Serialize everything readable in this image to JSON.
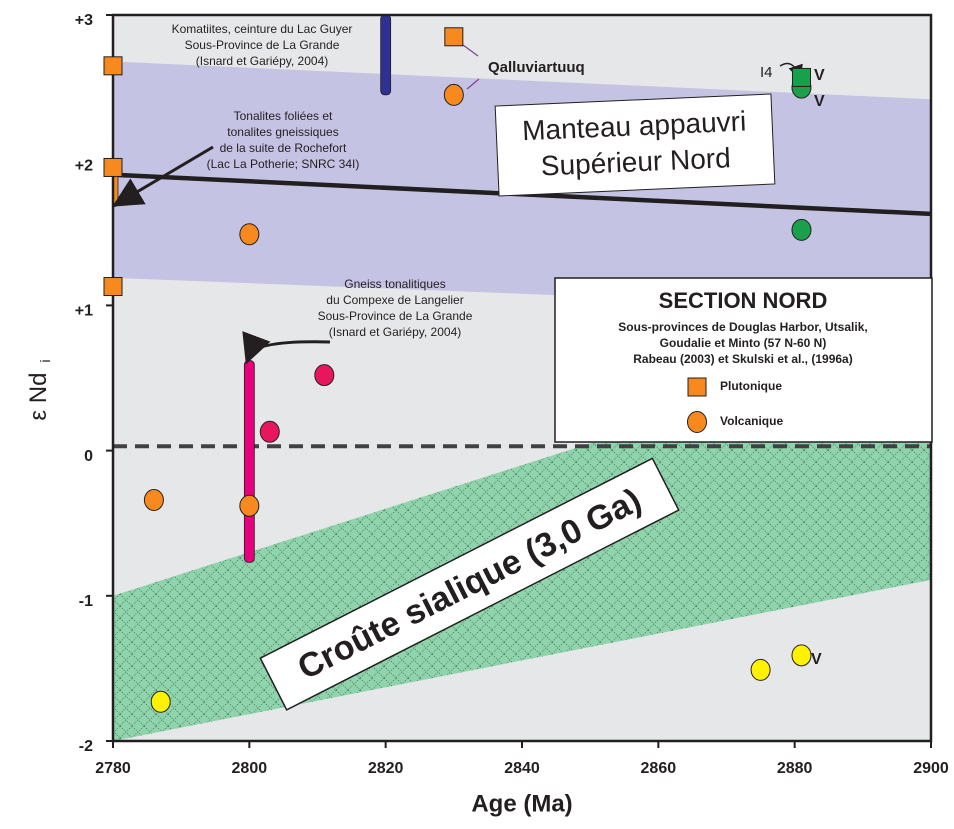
{
  "chart_data": {
    "type": "scatter",
    "xlabel": "Age (Ma)",
    "ylabel": "ε Nd",
    "ylabel_sub": "i",
    "xlim": [
      2780,
      2900
    ],
    "ylim": [
      -2,
      3
    ],
    "xticks": [
      2780,
      2800,
      2820,
      2840,
      2860,
      2880,
      2900
    ],
    "yticks": [
      {
        "value": 3,
        "label": "+3"
      },
      {
        "value": 2,
        "label": "+2"
      },
      {
        "value": 1,
        "label": "+1"
      },
      0,
      -1,
      -2
    ],
    "background": "#e6e7e8",
    "bands": [
      {
        "label": [
          "Manteau appauvri",
          "Supérieur Nord"
        ],
        "color": "#c5c3e3",
        "x": [
          2780,
          2900
        ],
        "upper": [
          2.68,
          2.42
        ],
        "lower": [
          1.19,
          0.97
        ]
      },
      {
        "label": [
          "Croûte sialique (3,0 Ga)"
        ],
        "color": "#8fd4ac",
        "x": [
          2780,
          2900
        ],
        "upper": [
          -1.0,
          0.8
        ],
        "lower": [
          -2,
          -0.89
        ]
      }
    ],
    "lines": [
      {
        "x": [
          2780,
          2900
        ],
        "y": [
          1.9,
          1.63
        ],
        "color": "#231f20",
        "dashed": false
      },
      {
        "x": [
          2780,
          2900
        ],
        "y": [
          0.03,
          0.03
        ],
        "color": "#414042",
        "dashed": true
      }
    ],
    "ranges": [
      {
        "x": 2820,
        "y": [
          2.45,
          3
        ],
        "color": "#2e3192"
      },
      {
        "x": 2800,
        "y": [
          -0.77,
          0.62
        ],
        "color": "#e6007e"
      },
      {
        "x": 2780,
        "y": [
          1.68,
          2.0
        ],
        "color": "#f7891f"
      }
    ],
    "series": [
      {
        "name": "Plutonique",
        "marker": "square",
        "color": "#f7891f",
        "x": [
          2780,
          2780,
          2780,
          2830
        ],
        "y": [
          2.65,
          1.95,
          1.13,
          2.85
        ]
      },
      {
        "name": "Volcanique",
        "marker": "circle",
        "color": "#f7891f",
        "x": [
          2830,
          2800,
          2786,
          2800
        ],
        "y": [
          2.45,
          1.49,
          -0.34,
          -0.38
        ]
      },
      {
        "marker": "circle",
        "color": "#e8175d",
        "x": [
          2811,
          2803
        ],
        "y": [
          0.52,
          0.13
        ]
      },
      {
        "marker": "circle",
        "color": "#1aa04a",
        "x": [
          2881,
          2881
        ],
        "y": [
          2.5,
          1.52
        ]
      },
      {
        "marker": "square",
        "color": "#1aa04a",
        "x": [
          2881
        ],
        "y": [
          2.57
        ]
      },
      {
        "marker": "circle",
        "color": "#fff200",
        "x": [
          2787,
          2875,
          2881
        ],
        "y": [
          -1.73,
          -1.51,
          -1.41
        ]
      }
    ],
    "annotations": [
      [
        "Komatiites, ceinture du Lac Guyer",
        "Sous-Province de La Grande",
        "(Isnard et Gariépy, 2004)"
      ],
      [
        "Tonalites foliées et",
        "tonalites gneissiques",
        "de la suite de Rochefort",
        "(Lac La Potherie; SNRC 34I)"
      ],
      [
        "Gneiss tonalitiques",
        "du Compexe de Langelier",
        "Sous-Province de La Grande",
        "(Isnard et Gariépy,  2004)"
      ]
    ],
    "labels": [
      "Qalluviartuuq",
      "I4",
      "V",
      "V",
      "V"
    ],
    "legend": {
      "title": "SECTION NORD",
      "lines": [
        "Sous-provinces de Douglas Harbor, Utsalik,",
        "Goudalie et Minto  (57 N-60 N)",
        "Rabeau (2003) et Skulski et al., (1996a)"
      ]
    }
  }
}
